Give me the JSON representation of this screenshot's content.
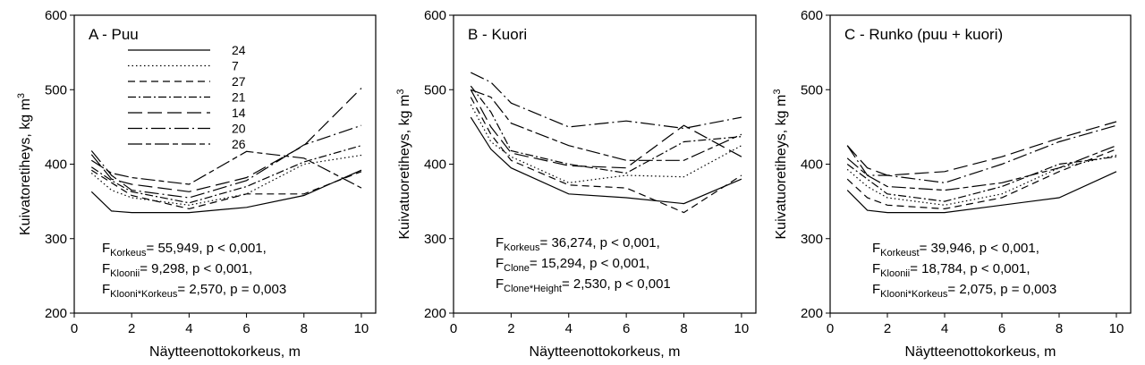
{
  "chart_data": [
    {
      "type": "line",
      "title": "A  - Puu",
      "xlabel": "Näytteenottokorkeus, m",
      "ylabel": "Kuivatoretiheys, kg m",
      "ylabel_sup": "3",
      "xlim": [
        0,
        10.5
      ],
      "ylim": [
        200,
        600
      ],
      "xticks": [
        "0",
        "2",
        "4",
        "6",
        "8",
        "10"
      ],
      "yticks": [
        "200",
        "300",
        "400",
        "500",
        "600"
      ],
      "grid": false,
      "legend": "top-left",
      "x": [
        0.6,
        1.3,
        2,
        4,
        6,
        8,
        10
      ],
      "series": [
        {
          "name": "24",
          "dash": "solid",
          "values": [
            363,
            337,
            335,
            335,
            342,
            358,
            392
          ]
        },
        {
          "name": "7",
          "dash": "dot",
          "values": [
            388,
            365,
            355,
            345,
            360,
            400,
            412
          ]
        },
        {
          "name": "27",
          "dash": "short",
          "values": [
            392,
            375,
            358,
            340,
            360,
            360,
            390
          ]
        },
        {
          "name": "21",
          "dash": "dashdot",
          "values": [
            396,
            378,
            363,
            348,
            370,
            403,
            425
          ]
        },
        {
          "name": "14",
          "dash": "long",
          "values": [
            413,
            380,
            373,
            363,
            382,
            425,
            502
          ]
        },
        {
          "name": "20",
          "dash": "longdot",
          "values": [
            418,
            385,
            365,
            355,
            378,
            426,
            452
          ]
        },
        {
          "name": "26",
          "dash": "longshort",
          "values": [
            405,
            388,
            382,
            373,
            417,
            408,
            368
          ]
        }
      ],
      "stats": [
        {
          "f": "F",
          "sub": "Korkeus",
          "text": "= 55,949, p < 0,001,"
        },
        {
          "f": "F",
          "sub": "Kloonii",
          "text": "= 9,298, p < 0,001,"
        },
        {
          "f": "F",
          "sub": "Klooni*Korkeus",
          "text": "= 2,570, p = 0,003"
        }
      ]
    },
    {
      "type": "line",
      "title": "B - Kuori",
      "xlabel": "Näytteenottokorkeus, m",
      "ylabel": "Kuivatuoretiheys, kg m",
      "ylabel_sup": "3",
      "xlim": [
        0,
        10.5
      ],
      "ylim": [
        200,
        600
      ],
      "xticks": [
        "0",
        "2",
        "4",
        "6",
        "8",
        "10"
      ],
      "yticks": [
        "200",
        "300",
        "400",
        "500",
        "600"
      ],
      "grid": false,
      "x": [
        0.6,
        1.3,
        2,
        4,
        6,
        8,
        10
      ],
      "series": [
        {
          "dash": "solid",
          "values": [
            463,
            420,
            395,
            360,
            355,
            347,
            380
          ]
        },
        {
          "dash": "dot",
          "values": [
            480,
            430,
            410,
            375,
            385,
            383,
            425
          ]
        },
        {
          "dash": "short",
          "values": [
            490,
            440,
            405,
            372,
            368,
            335,
            385
          ]
        },
        {
          "dash": "dashdot",
          "values": [
            505,
            470,
            418,
            400,
            388,
            430,
            437
          ]
        },
        {
          "dash": "long",
          "values": [
            500,
            450,
            415,
            398,
            395,
            452,
            410
          ]
        },
        {
          "dash": "longdot",
          "values": [
            523,
            510,
            482,
            450,
            458,
            448,
            463
          ]
        },
        {
          "dash": "longshort",
          "values": [
            500,
            490,
            455,
            425,
            405,
            405,
            440
          ]
        }
      ],
      "stats": [
        {
          "f": "F",
          "sub": "Korkeus",
          "text": "= 36,274, p < 0,001,"
        },
        {
          "f": "F",
          "sub": "Clone",
          "text": "= 15,294, p < 0,001,"
        },
        {
          "f": "F",
          "sub": "Clone*Height",
          "text": "= 2,530, p < 0,001"
        }
      ]
    },
    {
      "type": "line",
      "title": "C - Runko (puu + kuori)",
      "xlabel": "Näytteenottokorkeus, m",
      "ylabel": "Kuivatuoretiheys, kg m",
      "ylabel_sup": "3",
      "xlim": [
        0,
        10.5
      ],
      "ylim": [
        200,
        600
      ],
      "xticks": [
        "0",
        "2",
        "4",
        "6",
        "8",
        "10"
      ],
      "yticks": [
        "200",
        "300",
        "400",
        "500",
        "600"
      ],
      "grid": false,
      "x": [
        0.6,
        1.3,
        2,
        4,
        6,
        8,
        10
      ],
      "series": [
        {
          "dash": "solid",
          "values": [
            365,
            338,
            335,
            335,
            345,
            355,
            390
          ]
        },
        {
          "dash": "dot",
          "values": [
            393,
            370,
            355,
            345,
            360,
            395,
            412
          ]
        },
        {
          "dash": "short",
          "values": [
            380,
            355,
            345,
            340,
            355,
            390,
            420
          ]
        },
        {
          "dash": "dashdot",
          "values": [
            400,
            380,
            360,
            350,
            370,
            400,
            410
          ]
        },
        {
          "dash": "long",
          "values": [
            425,
            395,
            385,
            390,
            410,
            435,
            457
          ]
        },
        {
          "dash": "longdot",
          "values": [
            425,
            385,
            385,
            375,
            400,
            430,
            452
          ]
        },
        {
          "dash": "longshort",
          "values": [
            408,
            385,
            370,
            365,
            375,
            395,
            425
          ]
        }
      ],
      "stats": [
        {
          "f": "F",
          "sub": "Korkeust",
          "text": "= 39,946, p < 0,001,"
        },
        {
          "f": "F",
          "sub": "Kloonii",
          "text": "= 18,784, p < 0,001,"
        },
        {
          "f": "F",
          "sub": "Klooni*Korkeus",
          "text": "= 2,075, p = 0,003"
        }
      ]
    }
  ]
}
